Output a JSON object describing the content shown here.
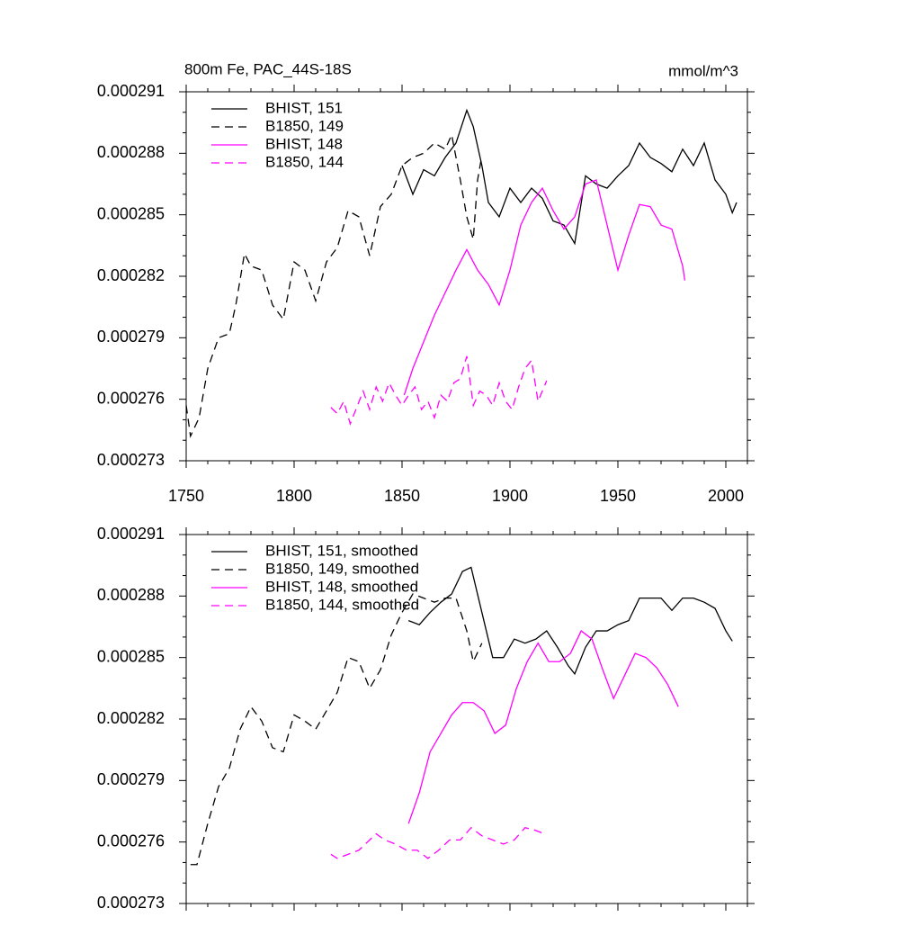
{
  "chart_data": [
    {
      "type": "line",
      "title": "800m Fe, PAC_44S-18S",
      "units": "mmol/m^3",
      "xlim": [
        1750,
        2010
      ],
      "xticks": [
        1750,
        1800,
        1850,
        1900,
        1950,
        2000
      ],
      "xtick_labels": true,
      "ylim": [
        0.000273,
        0.000291
      ],
      "yticks": [
        0.000273,
        0.000276,
        0.000279,
        0.000282,
        0.000285,
        0.000288,
        0.000291
      ],
      "legend": "upper left",
      "series": [
        {
          "name": "BHIST, 151",
          "color": "#000000",
          "dashed": false,
          "x": [
            1850,
            1855,
            1860,
            1865,
            1870,
            1875,
            1880,
            1883,
            1887,
            1890,
            1895,
            1900,
            1905,
            1910,
            1915,
            1920,
            1925,
            1930,
            1935,
            1940,
            1945,
            1950,
            1955,
            1960,
            1965,
            1970,
            1975,
            1980,
            1985,
            1990,
            1995,
            2000,
            2003,
            2005
          ],
          "values": [
            0.0002874,
            0.000286,
            0.0002872,
            0.0002869,
            0.0002878,
            0.0002885,
            0.0002901,
            0.0002893,
            0.0002874,
            0.0002856,
            0.0002849,
            0.0002863,
            0.0002856,
            0.0002863,
            0.0002858,
            0.0002847,
            0.0002845,
            0.0002836,
            0.0002869,
            0.0002865,
            0.0002863,
            0.0002869,
            0.0002874,
            0.0002885,
            0.0002878,
            0.0002875,
            0.0002871,
            0.0002882,
            0.0002874,
            0.0002885,
            0.0002867,
            0.000286,
            0.0002851,
            0.0002856
          ]
        },
        {
          "name": "B1850, 149",
          "color": "#000000",
          "dashed": true,
          "x": [
            1750,
            1752,
            1756,
            1760,
            1765,
            1770,
            1773,
            1777,
            1780,
            1785,
            1790,
            1795,
            1800,
            1805,
            1810,
            1815,
            1820,
            1825,
            1830,
            1835,
            1840,
            1845,
            1850,
            1855,
            1860,
            1865,
            1870,
            1873,
            1877,
            1880,
            1883,
            1885,
            1887
          ],
          "values": [
            0.0002757,
            0.0002742,
            0.0002751,
            0.0002775,
            0.000279,
            0.0002792,
            0.0002806,
            0.0002831,
            0.0002825,
            0.0002823,
            0.0002806,
            0.0002799,
            0.0002827,
            0.0002823,
            0.0002808,
            0.0002827,
            0.0002834,
            0.0002852,
            0.0002849,
            0.000283,
            0.0002854,
            0.000286,
            0.0002874,
            0.0002878,
            0.000288,
            0.0002885,
            0.0002882,
            0.0002889,
            0.0002867,
            0.0002849,
            0.0002838,
            0.0002867,
            0.0002879
          ]
        },
        {
          "name": "BHIST, 148",
          "color": "#ff00ff",
          "dashed": false,
          "x": [
            1851,
            1855,
            1860,
            1865,
            1870,
            1875,
            1880,
            1885,
            1890,
            1895,
            1900,
            1905,
            1910,
            1915,
            1920,
            1925,
            1930,
            1935,
            1940,
            1945,
            1950,
            1955,
            1960,
            1965,
            1970,
            1975,
            1980,
            1981
          ],
          "values": [
            0.0002762,
            0.0002775,
            0.0002788,
            0.0002801,
            0.0002812,
            0.0002823,
            0.0002833,
            0.0002823,
            0.0002816,
            0.0002806,
            0.0002823,
            0.0002845,
            0.0002856,
            0.0002863,
            0.0002852,
            0.0002843,
            0.0002849,
            0.0002865,
            0.0002867,
            0.0002845,
            0.0002823,
            0.000284,
            0.0002855,
            0.0002854,
            0.0002845,
            0.0002843,
            0.0002825,
            0.0002818
          ]
        },
        {
          "name": "B1850, 144",
          "color": "#ff00ff",
          "dashed": true,
          "x": [
            1817,
            1820,
            1823,
            1826,
            1829,
            1832,
            1835,
            1838,
            1841,
            1844,
            1847,
            1850,
            1853,
            1856,
            1859,
            1862,
            1865,
            1868,
            1871,
            1874,
            1877,
            1880,
            1883,
            1886,
            1889,
            1892,
            1895,
            1898,
            1901,
            1904,
            1907,
            1910,
            1913,
            1917
          ],
          "values": [
            0.0002756,
            0.0002753,
            0.0002759,
            0.0002748,
            0.0002756,
            0.0002764,
            0.0002755,
            0.0002766,
            0.0002759,
            0.0002768,
            0.0002762,
            0.0002757,
            0.0002762,
            0.0002766,
            0.0002755,
            0.0002759,
            0.0002751,
            0.0002762,
            0.0002759,
            0.0002768,
            0.000277,
            0.0002781,
            0.0002757,
            0.0002764,
            0.0002762,
            0.0002757,
            0.0002768,
            0.0002759,
            0.0002755,
            0.0002766,
            0.0002775,
            0.0002779,
            0.0002759,
            0.0002769
          ]
        }
      ]
    },
    {
      "type": "line",
      "xlim": [
        1750,
        2010
      ],
      "xticks": [
        1750,
        1800,
        1850,
        1900,
        1950,
        2000
      ],
      "xtick_labels": false,
      "ylim": [
        0.000273,
        0.000291
      ],
      "yticks": [
        0.000273,
        0.000276,
        0.000279,
        0.000282,
        0.000285,
        0.000288,
        0.000291
      ],
      "legend": "upper left",
      "series": [
        {
          "name": "BHIST, 151, smoothed",
          "color": "#000000",
          "dashed": false,
          "x": [
            1853,
            1858,
            1863,
            1868,
            1873,
            1878,
            1882,
            1887,
            1892,
            1897,
            1902,
            1907,
            1912,
            1917,
            1922,
            1927,
            1930,
            1935,
            1940,
            1945,
            1950,
            1955,
            1960,
            1965,
            1970,
            1975,
            1980,
            1985,
            1990,
            1995,
            2000,
            2003
          ],
          "values": [
            0.0002868,
            0.0002866,
            0.0002872,
            0.0002877,
            0.0002881,
            0.0002892,
            0.0002894,
            0.0002872,
            0.000285,
            0.000285,
            0.0002859,
            0.0002857,
            0.0002859,
            0.0002863,
            0.0002855,
            0.0002846,
            0.0002842,
            0.0002855,
            0.0002863,
            0.0002863,
            0.0002866,
            0.0002868,
            0.0002879,
            0.0002879,
            0.0002879,
            0.0002873,
            0.0002879,
            0.0002879,
            0.0002877,
            0.0002874,
            0.0002863,
            0.0002858
          ]
        },
        {
          "name": "B1850, 149, smoothed",
          "color": "#000000",
          "dashed": true,
          "x": [
            1752,
            1755,
            1760,
            1765,
            1770,
            1775,
            1780,
            1785,
            1790,
            1795,
            1800,
            1805,
            1810,
            1815,
            1820,
            1825,
            1830,
            1835,
            1840,
            1845,
            1850,
            1855,
            1860,
            1865,
            1870,
            1875,
            1880,
            1883,
            1887
          ],
          "values": [
            0.0002749,
            0.0002749,
            0.0002769,
            0.0002787,
            0.0002796,
            0.0002815,
            0.0002826,
            0.0002819,
            0.0002806,
            0.0002804,
            0.0002822,
            0.0002819,
            0.0002815,
            0.0002824,
            0.0002833,
            0.000285,
            0.0002848,
            0.0002835,
            0.0002844,
            0.0002861,
            0.0002872,
            0.0002881,
            0.0002879,
            0.0002877,
            0.0002879,
            0.0002879,
            0.0002863,
            0.0002848,
            0.0002857
          ]
        },
        {
          "name": "BHIST, 148, smoothed",
          "color": "#ff00ff",
          "dashed": false,
          "x": [
            1853,
            1858,
            1863,
            1868,
            1873,
            1878,
            1883,
            1888,
            1893,
            1898,
            1903,
            1908,
            1913,
            1918,
            1923,
            1928,
            1933,
            1938,
            1943,
            1948,
            1953,
            1958,
            1963,
            1968,
            1973,
            1978
          ],
          "values": [
            0.0002769,
            0.0002784,
            0.0002804,
            0.0002813,
            0.0002822,
            0.0002828,
            0.0002828,
            0.0002824,
            0.0002813,
            0.0002817,
            0.0002835,
            0.0002848,
            0.0002857,
            0.0002848,
            0.0002848,
            0.0002852,
            0.0002863,
            0.0002859,
            0.0002844,
            0.000283,
            0.0002841,
            0.0002852,
            0.000285,
            0.0002845,
            0.0002837,
            0.0002826
          ]
        },
        {
          "name": "B1850, 144, smoothed",
          "color": "#ff00ff",
          "dashed": true,
          "x": [
            1817,
            1820,
            1825,
            1830,
            1835,
            1838,
            1842,
            1847,
            1852,
            1857,
            1862,
            1867,
            1872,
            1877,
            1882,
            1887,
            1892,
            1897,
            1902,
            1907,
            1911,
            1916
          ],
          "values": [
            0.0002754,
            0.0002752,
            0.0002754,
            0.0002756,
            0.0002761,
            0.0002764,
            0.0002761,
            0.0002759,
            0.0002756,
            0.0002756,
            0.0002752,
            0.0002756,
            0.0002761,
            0.0002761,
            0.0002767,
            0.0002763,
            0.0002761,
            0.0002759,
            0.0002761,
            0.0002767,
            0.0002766,
            0.0002764
          ]
        }
      ]
    }
  ]
}
